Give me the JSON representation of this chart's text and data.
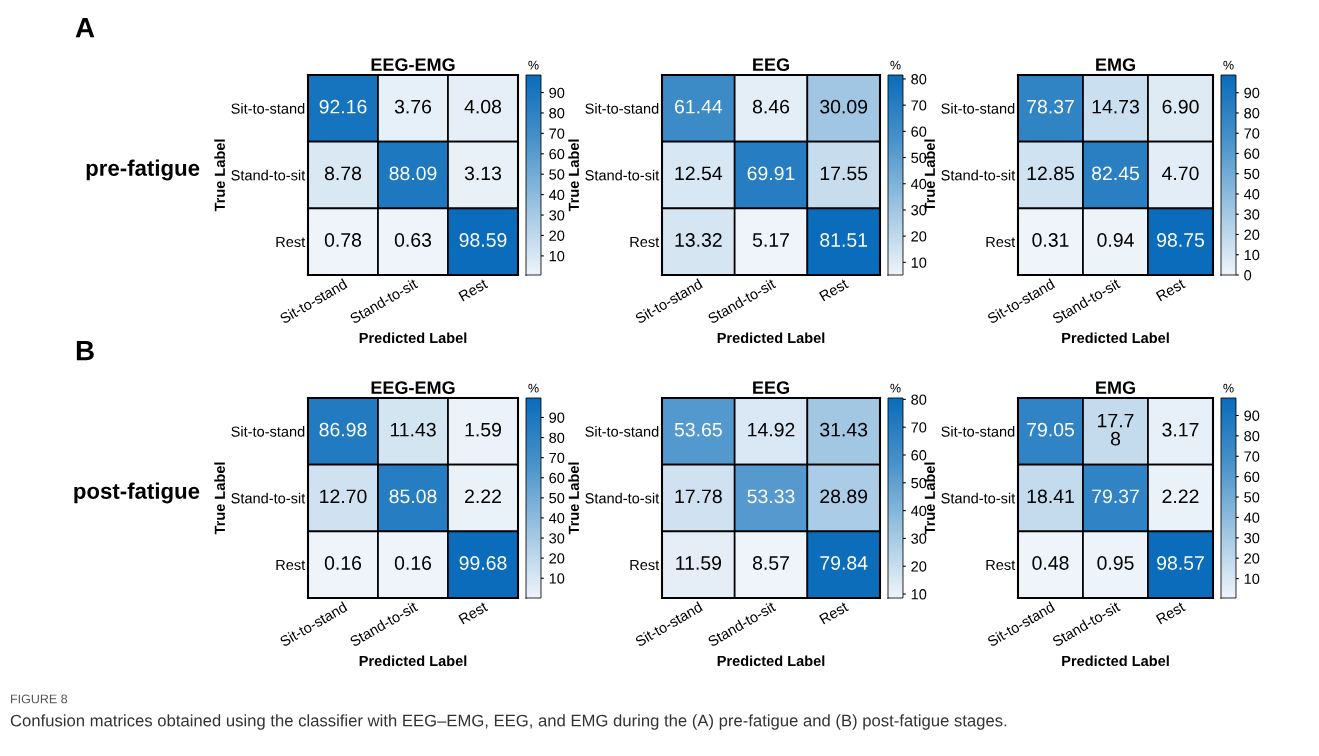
{
  "chart_data": [
    {
      "type": "heatmap",
      "title": "EEG-EMG",
      "xlabel": "Predicted Label",
      "ylabel": "True Label",
      "clabel": "%",
      "categories": [
        "Sit-to-stand",
        "Stand-to-sit",
        "Rest"
      ],
      "y_categories": [
        "Sit-to-stand",
        "Stand-to-sit",
        "Rest"
      ],
      "cells": [
        [
          92.16,
          3.76,
          4.08
        ],
        [
          8.78,
          88.09,
          3.13
        ],
        [
          0.78,
          0.63,
          98.59
        ]
      ],
      "data_labels": true,
      "clim": [
        0.63,
        98.59
      ],
      "cticks": [
        10,
        20,
        30,
        40,
        50,
        60,
        70,
        80,
        90
      ],
      "annotations": [
        "A",
        "pre-fatigue"
      ]
    },
    {
      "type": "heatmap",
      "title": "EEG",
      "xlabel": "Predicted Label",
      "ylabel": "True Label",
      "clabel": "%",
      "categories": [
        "Sit-to-stand",
        "Stand-to-sit",
        "Rest"
      ],
      "y_categories": [
        "Sit-to-stand",
        "Stand-to-sit",
        "Rest"
      ],
      "cells": [
        [
          61.44,
          8.46,
          30.09
        ],
        [
          12.54,
          69.91,
          17.55
        ],
        [
          13.32,
          5.17,
          81.51
        ]
      ],
      "data_labels": true,
      "clim": [
        5.17,
        81.51
      ],
      "cticks": [
        10,
        20,
        30,
        40,
        50,
        60,
        70,
        80
      ]
    },
    {
      "type": "heatmap",
      "title": "EMG",
      "xlabel": "Predicted Label",
      "ylabel": "True Label",
      "clabel": "%",
      "categories": [
        "Sit-to-stand",
        "Stand-to-sit",
        "Rest"
      ],
      "y_categories": [
        "Sit-to-stand",
        "Stand-to-sit",
        "Rest"
      ],
      "cells": [
        [
          78.37,
          14.73,
          6.9
        ],
        [
          12.85,
          82.45,
          4.7
        ],
        [
          0.31,
          0.94,
          98.75
        ]
      ],
      "cell_labels": [
        [
          "78.37",
          "14.73",
          "6.90"
        ],
        [
          "12.85",
          "82.45",
          "4.70"
        ],
        [
          "0.31",
          "0.94",
          "98.75"
        ]
      ],
      "clim": [
        0,
        98.75
      ],
      "cticks": [
        0,
        10,
        20,
        30,
        40,
        50,
        60,
        70,
        80,
        90
      ]
    },
    {
      "type": "heatmap",
      "title": "EEG-EMG",
      "xlabel": "Predicted Label",
      "ylabel": "True Label",
      "clabel": "%",
      "categories": [
        "Sit-to-stand",
        "Stand-to-sit",
        "Rest"
      ],
      "y_categories": [
        "Sit-to-stand",
        "Stand-to-sit",
        "Rest"
      ],
      "cells": [
        [
          86.98,
          11.43,
          1.59
        ],
        [
          12.7,
          85.08,
          2.22
        ],
        [
          0.16,
          0.16,
          99.68
        ]
      ],
      "cell_labels": [
        [
          "86.98",
          "11.43",
          "1.59"
        ],
        [
          "12.70",
          "85.08",
          "2.22"
        ],
        [
          "0.16",
          "0.16",
          "99.68"
        ]
      ],
      "clim": [
        0.16,
        99.68
      ],
      "cticks": [
        10,
        20,
        30,
        40,
        50,
        60,
        70,
        80,
        90
      ],
      "annotations": [
        "B",
        "post-fatigue",
        "FIGURE 8",
        "Confusion matrices obtained using the classifier with EEG–EMG, EEG, and EMG during the (A) pre-fatigue and (B) post-fatigue stages."
      ]
    },
    {
      "type": "heatmap",
      "title": "EEG",
      "xlabel": "Predicted Label",
      "ylabel": "True Label",
      "clabel": "%",
      "categories": [
        "Sit-to-stand",
        "Stand-to-sit",
        "Rest"
      ],
      "y_categories": [
        "Sit-to-stand",
        "Stand-to-sit",
        "Rest"
      ],
      "cells": [
        [
          53.65,
          14.92,
          31.43
        ],
        [
          17.78,
          53.33,
          28.89
        ],
        [
          11.59,
          8.57,
          79.84
        ]
      ],
      "data_labels": true,
      "clim": [
        8.57,
        80.5
      ],
      "cticks": [
        10,
        20,
        30,
        40,
        50,
        60,
        70,
        80
      ]
    },
    {
      "type": "heatmap",
      "title": "EMG",
      "xlabel": "Predicted Label",
      "ylabel": "True Label",
      "clabel": "%",
      "categories": [
        "Sit-to-stand",
        "Stand-to-sit",
        "Rest"
      ],
      "y_categories": [
        "Sit-to-stand",
        "Stand-to-sit",
        "Rest"
      ],
      "cells": [
        [
          79.05,
          17.78,
          3.17
        ],
        [
          18.41,
          79.37,
          2.22
        ],
        [
          0.48,
          0.95,
          98.57
        ]
      ],
      "cell_labels": [
        [
          "79.05",
          "17.7\n8",
          "3.17"
        ],
        [
          "18.41",
          "79.37",
          "2.22"
        ],
        [
          "0.48",
          "0.95",
          "98.57"
        ]
      ],
      "clim": [
        0.48,
        98.57
      ],
      "cticks": [
        10,
        20,
        30,
        40,
        50,
        60,
        70,
        80,
        90
      ]
    }
  ]
}
